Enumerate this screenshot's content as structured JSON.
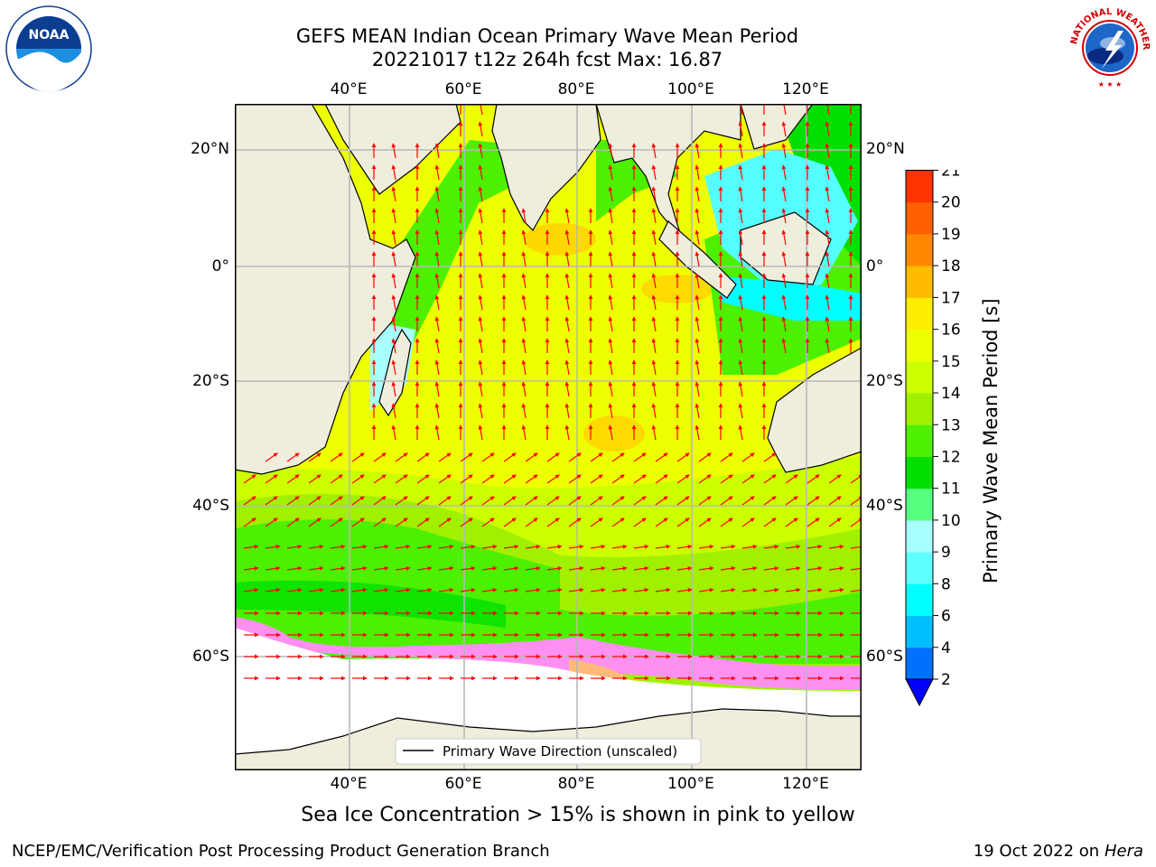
{
  "header": {
    "title_line1": "GEFS MEAN Indian Ocean Primary Wave Mean Period",
    "title_line2": "20221017 t12z 264h fcst   Max: 16.87"
  },
  "map": {
    "lon_labels": [
      "40°E",
      "60°E",
      "80°E",
      "100°E",
      "120°E"
    ],
    "lat_labels_left": [
      "20°N",
      "0°",
      "20°S",
      "40°S",
      "60°S"
    ],
    "lat_labels_right": [
      "20°N",
      "0°",
      "20°S",
      "40°S",
      "60°S"
    ],
    "legend_text": "Primary Wave Direction (unscaled)",
    "arrow_color": "#ff0000",
    "land_color": "#efeddc",
    "ice_color": "#ff8ff0"
  },
  "colorbar": {
    "label": "Primary Wave Mean Period [s]",
    "ticks": [
      "2",
      "4",
      "6",
      "8",
      "9",
      "10",
      "11",
      "12",
      "13",
      "14",
      "15",
      "16",
      "17",
      "18",
      "19",
      "20",
      "21"
    ],
    "colors": [
      "#0070ff",
      "#00bfff",
      "#00ffff",
      "#60ffff",
      "#a8ffff",
      "#55ff80",
      "#00e000",
      "#4cf000",
      "#a0f000",
      "#ccff00",
      "#eeff00",
      "#ffee00",
      "#ffbb00",
      "#ff8800",
      "#ff6000",
      "#ff3300",
      "#ff0000"
    ],
    "under_color": "#0000ff"
  },
  "notes": {
    "sea_ice": "Sea Ice Concentration > 15% is shown in pink to yellow"
  },
  "footer": {
    "left": "NCEP/EMC/Verification Post Processing Product Generation Branch",
    "right_date": "19 Oct 2022 on ",
    "right_host": "Hera"
  }
}
